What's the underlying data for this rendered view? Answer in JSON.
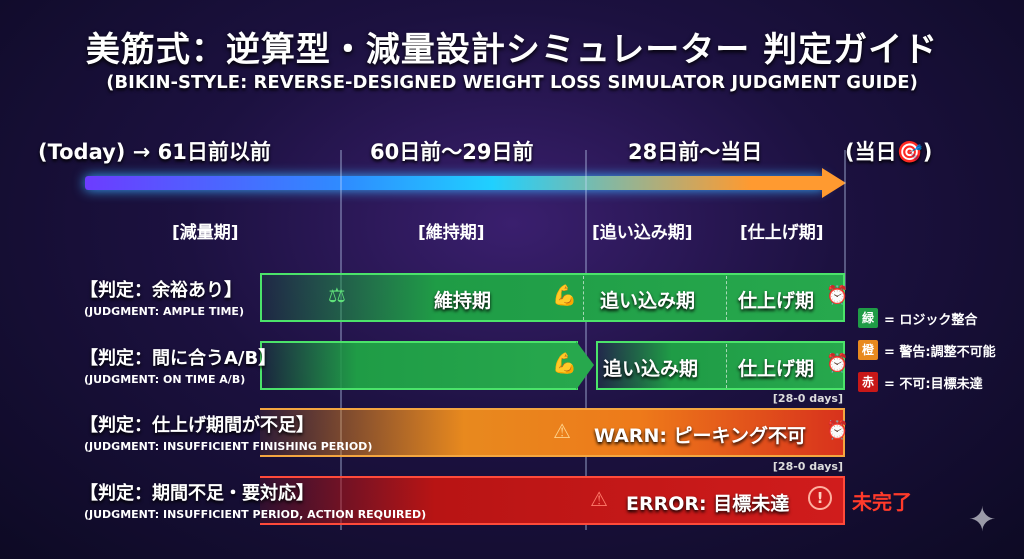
{
  "title": "美筋式：逆算型・減量設計シミュレーター 判定ガイド",
  "subtitle": "(BIKIN-STYLE: REVERSE-DESIGNED WEIGHT LOSS SIMULATOR JUDGMENT GUIDE)",
  "timeline": {
    "labels": [
      "(Today) → 61日前以前",
      "60日前〜29日前",
      "28日前〜当日",
      "(当日🎯)"
    ],
    "phases": [
      "[減量期]",
      "[維持期]",
      "[追い込み期]",
      "[仕上げ期]"
    ]
  },
  "rows": [
    {
      "label": "【判定：余裕あり】",
      "sub": "(JUDGMENT: AMPLE TIME)",
      "texts": [
        "維持期",
        "追い込み期",
        "仕上げ期"
      ],
      "color": "#27a84d"
    },
    {
      "label": "【判定：間に合うA/B】",
      "sub": "(JUDGMENT: ON TIME A/B)",
      "texts": [
        "追い込み期",
        "仕上げ期"
      ],
      "days": "[28-0 days]",
      "color": "#27a84d"
    },
    {
      "label": "【判定：仕上げ期間が不足】",
      "sub": "(JUDGMENT: INSUFFICIENT FINISHING PERIOD)",
      "texts": [
        "WARN: ピーキング不可"
      ],
      "days": "[28-0 days]",
      "color": "#f08a1e"
    },
    {
      "label": "【判定：期間不足・要対応】",
      "sub": "(JUDGMENT: INSUFFICIENT PERIOD, ACTION REQUIRED)",
      "texts": [
        "ERROR: 目標未達"
      ],
      "status": "未完了",
      "color": "#c81818"
    }
  ],
  "legend": [
    {
      "key": "緑",
      "text": "= ロジック整合",
      "color": "#1f9c46"
    },
    {
      "key": "橙",
      "text": "= 警告:調整不可能",
      "color": "#e8891e"
    },
    {
      "key": "赤",
      "text": "= 不可:目標未達",
      "color": "#c81818"
    }
  ],
  "icons": [
    "scale-icon",
    "flexed-arm-icon",
    "alarm-clock-icon",
    "warning-icon",
    "exclamation-circle-icon",
    "sparkle-icon"
  ]
}
